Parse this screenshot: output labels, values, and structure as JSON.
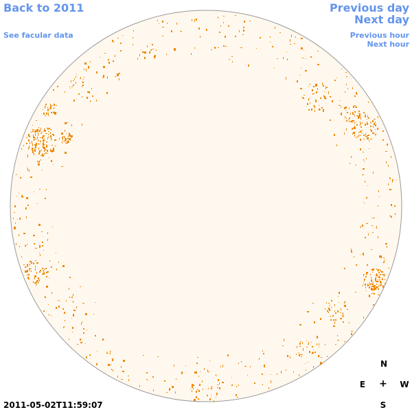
{
  "nav": {
    "back_label": "Back to 2011",
    "facular_label": "See facular data",
    "prev_day_label": "Previous day",
    "next_day_label": "Next day",
    "prev_hour_label": "Previous hour",
    "next_hour_label": "Next hour"
  },
  "compass": {
    "north": "N",
    "south": "S",
    "east": "E",
    "west": "W",
    "center": "+"
  },
  "timestamp": "2011-05-02T11:59:07",
  "colors": {
    "link": "#6495ed",
    "disk_fill": "#fff8ee",
    "disk_stroke": "#999999",
    "facula": "#ee8800",
    "text": "#000000"
  }
}
